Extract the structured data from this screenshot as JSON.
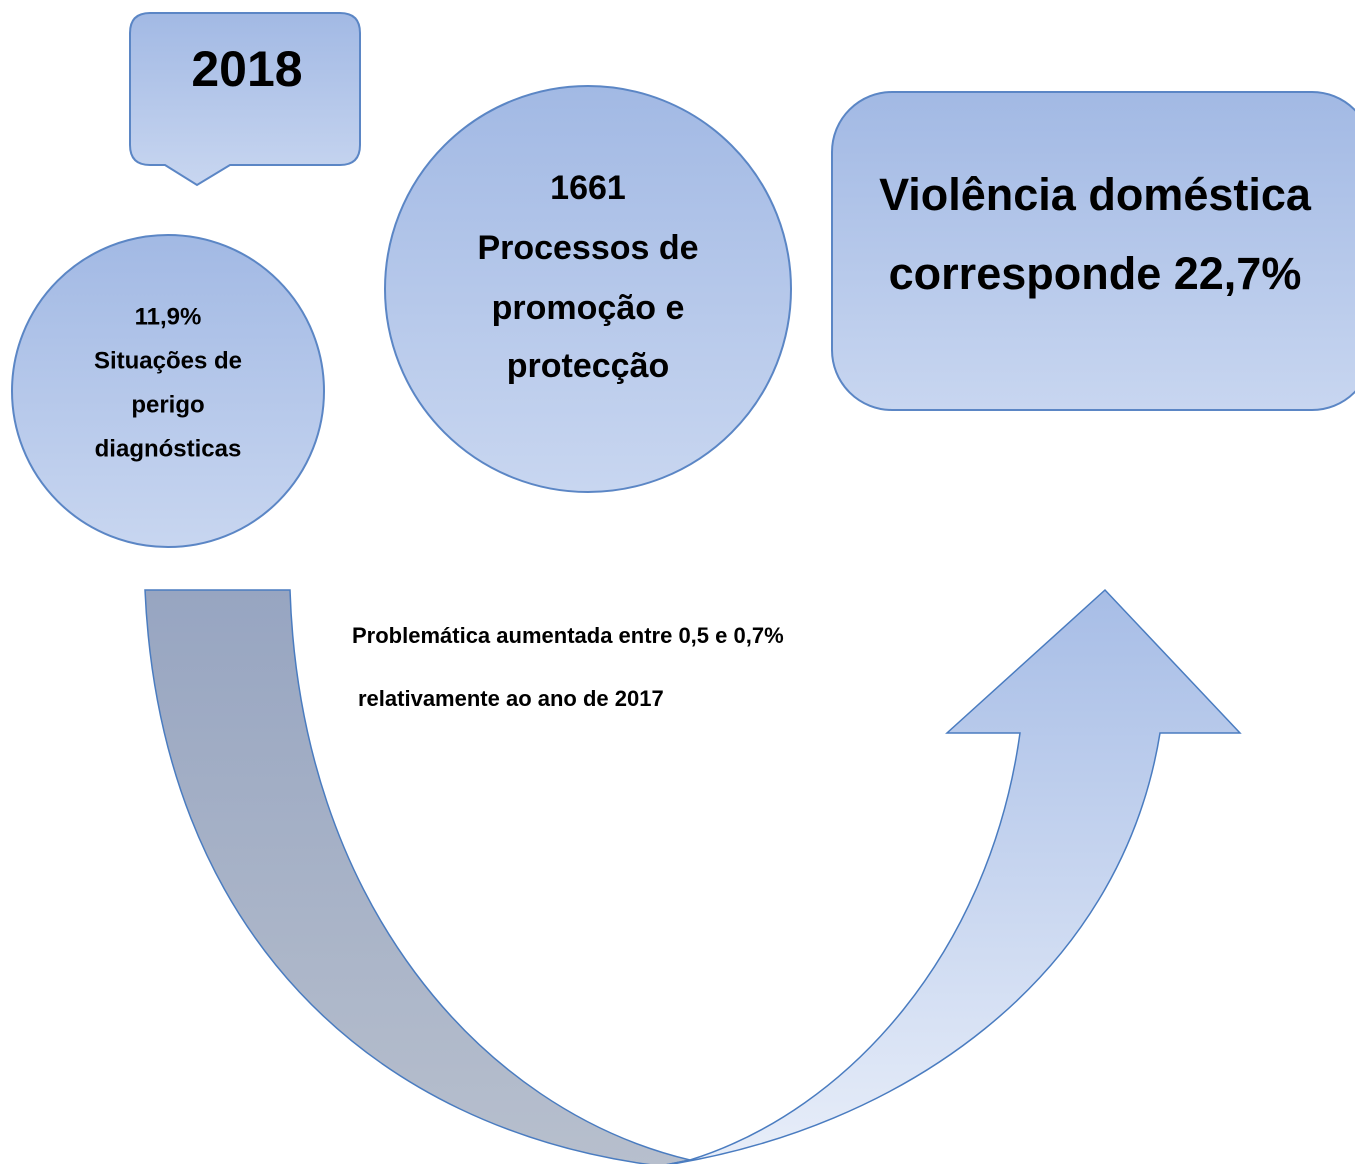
{
  "callout": {
    "label": "2018"
  },
  "circle_small": {
    "lines": [
      "11,9%",
      "Situações de",
      "perigo",
      "diagnósticas"
    ]
  },
  "circle_large": {
    "lines": [
      "1661",
      "Processos de",
      "promoção e",
      "protecção"
    ]
  },
  "box": {
    "lines": [
      "Violência doméstica",
      "corresponde 22,7%"
    ]
  },
  "note": {
    "lines": [
      "Problemática aumentada entre 0,5 e 0,7%",
      "relativamente ao ano de 2017"
    ]
  }
}
